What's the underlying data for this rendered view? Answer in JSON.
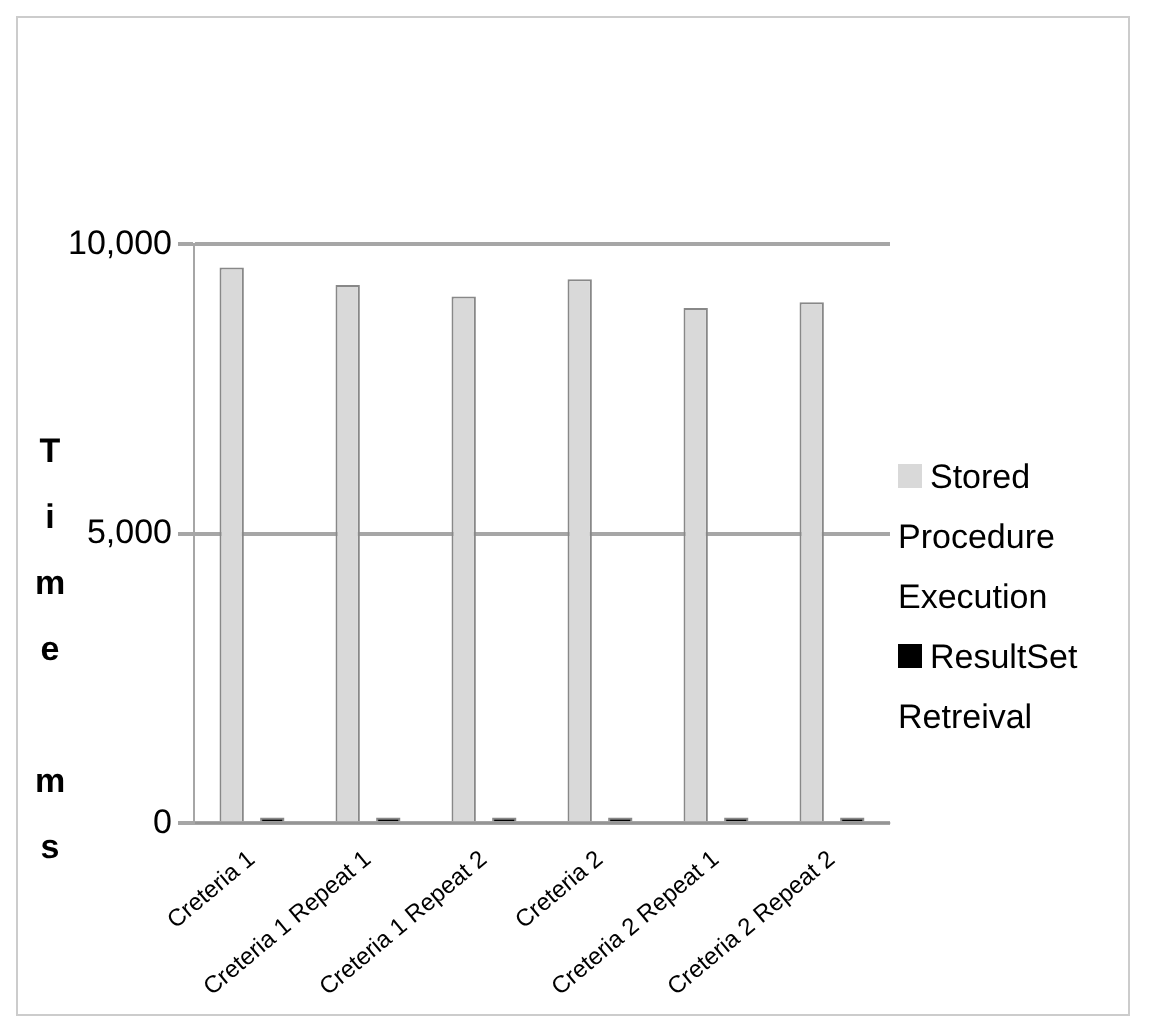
{
  "chart_data": {
    "type": "bar",
    "categories": [
      "Creteria 1",
      "Creteria 1 Repeat 1",
      "Creteria 1 Repeat 2",
      "Creteria 2",
      "Creteria 2 Repeat 1",
      "Creteria 2 Repeat 2"
    ],
    "series": [
      {
        "name": "Stored Procedure Execution",
        "color": "#d9d9d9",
        "values": [
          9600,
          9300,
          9100,
          9400,
          8900,
          9000
        ]
      },
      {
        "name": "ResultSet Retreival",
        "color": "#000000",
        "values": [
          100,
          100,
          100,
          100,
          100,
          100
        ]
      }
    ],
    "ylabel": "Time ms",
    "ylim": [
      0,
      10000
    ],
    "yticks": [
      {
        "value": 0,
        "label": "0"
      },
      {
        "value": 5000,
        "label": "5,000"
      },
      {
        "value": 10000,
        "label": "10,000"
      }
    ],
    "grid": "y",
    "legend": "right"
  }
}
